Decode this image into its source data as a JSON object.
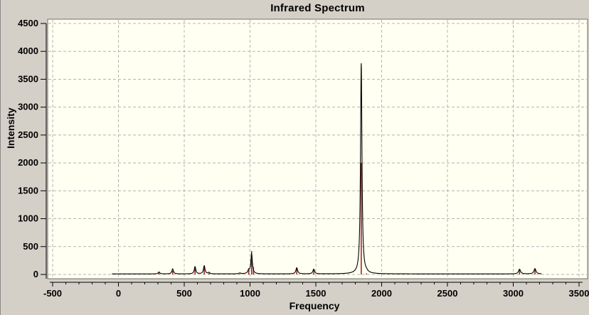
{
  "window": {
    "title": "Infrared Spectrum"
  },
  "chart_data": {
    "type": "line",
    "title": "Infrared Spectrum",
    "xlabel": "Frequency",
    "ylabel": "Intensity",
    "xlim": [
      -500,
      3500
    ],
    "ylim": [
      0,
      4500
    ],
    "x_ticks": [
      -500,
      0,
      500,
      1000,
      1500,
      2000,
      2500,
      3000,
      3500
    ],
    "x_minor_tick_step": 100,
    "y_ticks": [
      0,
      500,
      1000,
      1500,
      2000,
      2500,
      3000,
      3500,
      4000,
      4500
    ],
    "grid": "dashed both axes",
    "legend": "none",
    "colors": {
      "window_bg": "#d4d0c8",
      "plot_bg": "#fffff2",
      "grid": "#b4b4b4",
      "curve": "#000000",
      "stick": "#9b1c1c",
      "frame": "#6f6f6f"
    },
    "curve_domain": [
      -50,
      3215
    ],
    "baseline_intensity": 10,
    "stick_spectrum": [
      {
        "frequency": 308,
        "intensity": 30
      },
      {
        "frequency": 412,
        "intensity": 65
      },
      {
        "frequency": 582,
        "intensity": 140
      },
      {
        "frequency": 652,
        "intensity": 150
      },
      {
        "frequency": 688,
        "intensity": 25
      },
      {
        "frequency": 922,
        "intensity": 12
      },
      {
        "frequency": 990,
        "intensity": 95
      },
      {
        "frequency": 1012,
        "intensity": 420
      },
      {
        "frequency": 1026,
        "intensity": 130
      },
      {
        "frequency": 1355,
        "intensity": 115
      },
      {
        "frequency": 1484,
        "intensity": 80
      },
      {
        "frequency": 1845,
        "intensity": 2000
      },
      {
        "frequency": 1885,
        "intensity": 18
      },
      {
        "frequency": 3048,
        "intensity": 80
      },
      {
        "frequency": 3165,
        "intensity": 92
      }
    ],
    "envelope_peaks": [
      {
        "frequency": 308,
        "amplitude": 35,
        "width": 7
      },
      {
        "frequency": 412,
        "amplitude": 90,
        "width": 7
      },
      {
        "frequency": 582,
        "amplitude": 130,
        "width": 7
      },
      {
        "frequency": 652,
        "amplitude": 145,
        "width": 7
      },
      {
        "frequency": 688,
        "amplitude": 25,
        "width": 7
      },
      {
        "frequency": 922,
        "amplitude": 15,
        "width": 9
      },
      {
        "frequency": 990,
        "amplitude": 60,
        "width": 8
      },
      {
        "frequency": 1012,
        "amplitude": 355,
        "width": 7
      },
      {
        "frequency": 1355,
        "amplitude": 110,
        "width": 8
      },
      {
        "frequency": 1484,
        "amplitude": 85,
        "width": 8
      },
      {
        "frequency": 1845,
        "amplitude": 3775,
        "width": 6.5
      },
      {
        "frequency": 1885,
        "amplitude": 15,
        "width": 9
      },
      {
        "frequency": 3048,
        "amplitude": 85,
        "width": 9
      },
      {
        "frequency": 3165,
        "amplitude": 95,
        "width": 9
      }
    ]
  }
}
